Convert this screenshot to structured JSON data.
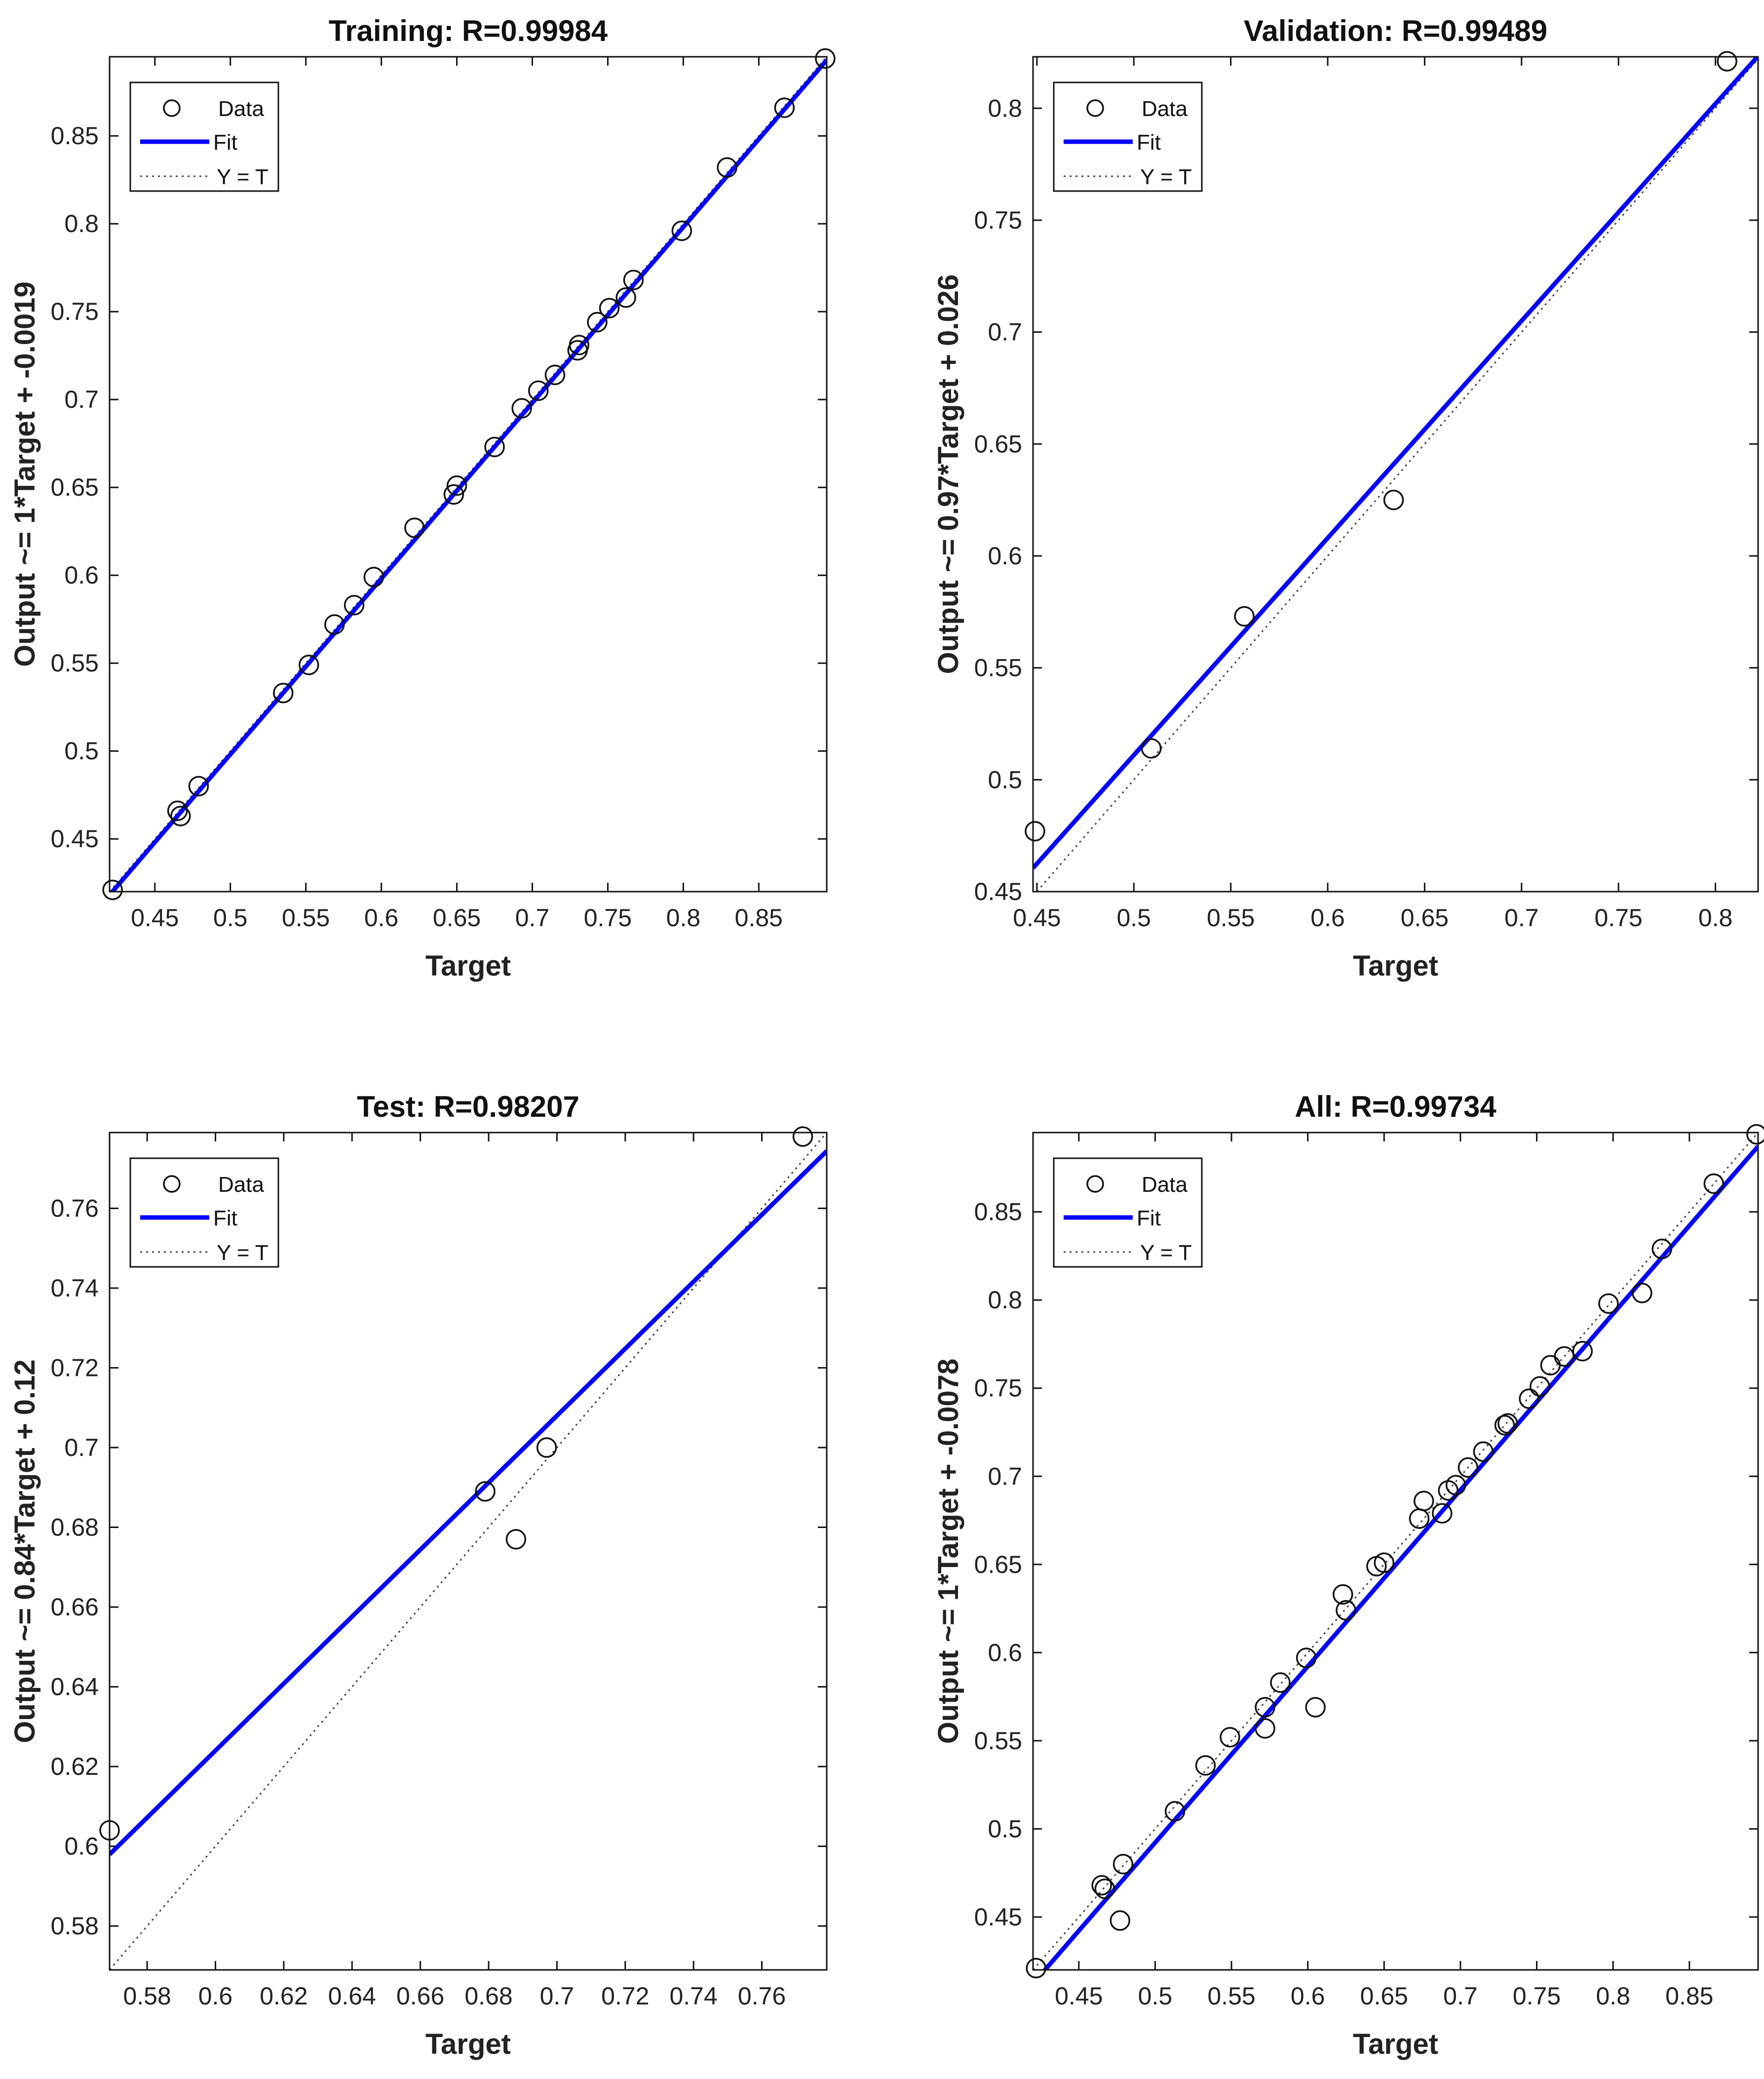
{
  "colors": {
    "fit": "#0000ff",
    "identity": "#444444",
    "marker": "#111111",
    "axes": "#111111",
    "background": "#ffffff"
  },
  "chart_data": [
    {
      "type": "scatter",
      "title": "Training: R=0.99984",
      "xlabel": "Target",
      "ylabel": "Output ~= 1*Target + -0.0019",
      "xlim": [
        0.42,
        0.895
      ],
      "ylim": [
        0.42,
        0.895
      ],
      "xticks": [
        0.45,
        0.5,
        0.55,
        0.6,
        0.65,
        0.7,
        0.75,
        0.8,
        0.85
      ],
      "xtick_labels": [
        "0.45",
        "0.5",
        "0.55",
        "0.6",
        "0.65",
        "0.7",
        "0.75",
        "0.8",
        "0.85"
      ],
      "yticks": [
        0.45,
        0.5,
        0.55,
        0.6,
        0.65,
        0.7,
        0.75,
        0.8,
        0.85
      ],
      "ytick_labels": [
        "0.45",
        "0.5",
        "0.55",
        "0.6",
        "0.65",
        "0.7",
        "0.75",
        "0.8",
        "0.85"
      ],
      "fit": {
        "slope": 1.0,
        "intercept": -0.0019
      },
      "legend": {
        "data": "Data",
        "fit": "Fit",
        "identity": "Y = T",
        "position": "top-left"
      },
      "points": [
        [
          0.422,
          0.421
        ],
        [
          0.465,
          0.466
        ],
        [
          0.467,
          0.463
        ],
        [
          0.479,
          0.48
        ],
        [
          0.535,
          0.533
        ],
        [
          0.552,
          0.549
        ],
        [
          0.569,
          0.572
        ],
        [
          0.582,
          0.583
        ],
        [
          0.595,
          0.599
        ],
        [
          0.622,
          0.627
        ],
        [
          0.648,
          0.646
        ],
        [
          0.65,
          0.651
        ],
        [
          0.675,
          0.673
        ],
        [
          0.693,
          0.695
        ],
        [
          0.704,
          0.705
        ],
        [
          0.715,
          0.714
        ],
        [
          0.73,
          0.728
        ],
        [
          0.731,
          0.731
        ],
        [
          0.743,
          0.744
        ],
        [
          0.751,
          0.752
        ],
        [
          0.762,
          0.758
        ],
        [
          0.767,
          0.768
        ],
        [
          0.799,
          0.796
        ],
        [
          0.829,
          0.832
        ],
        [
          0.867,
          0.866
        ],
        [
          0.894,
          0.894
        ]
      ]
    },
    {
      "type": "scatter",
      "title": "Validation: R=0.99489",
      "xlabel": "Target",
      "ylabel": "Output ~= 0.97*Target + 0.026",
      "xlim": [
        0.448,
        0.822
      ],
      "ylim": [
        0.45,
        0.823
      ],
      "xticks": [
        0.45,
        0.5,
        0.55,
        0.6,
        0.65,
        0.7,
        0.75,
        0.8
      ],
      "xtick_labels": [
        "0.45",
        "0.5",
        "0.55",
        "0.6",
        "0.65",
        "0.7",
        "0.75",
        "0.8"
      ],
      "yticks": [
        0.45,
        0.5,
        0.55,
        0.6,
        0.65,
        0.7,
        0.75,
        0.8
      ],
      "ytick_labels": [
        "0.45",
        "0.5",
        "0.55",
        "0.6",
        "0.65",
        "0.7",
        "0.75",
        "0.8"
      ],
      "fit": {
        "slope": 0.97,
        "intercept": 0.026
      },
      "legend": {
        "data": "Data",
        "fit": "Fit",
        "identity": "Y = T",
        "position": "top-left"
      },
      "points": [
        [
          0.449,
          0.477
        ],
        [
          0.509,
          0.514
        ],
        [
          0.557,
          0.573
        ],
        [
          0.634,
          0.625
        ],
        [
          0.806,
          0.821
        ]
      ]
    },
    {
      "type": "scatter",
      "title": "Test: R=0.98207",
      "xlabel": "Target",
      "ylabel": "Output ~= 0.84*Target + 0.12",
      "xlim": [
        0.569,
        0.779
      ],
      "ylim": [
        0.569,
        0.779
      ],
      "xticks": [
        0.58,
        0.6,
        0.62,
        0.64,
        0.66,
        0.68,
        0.7,
        0.72,
        0.74,
        0.76
      ],
      "xtick_labels": [
        "0.58",
        "0.6",
        "0.62",
        "0.64",
        "0.66",
        "0.68",
        "0.7",
        "0.72",
        "0.74",
        "0.76"
      ],
      "yticks": [
        0.58,
        0.6,
        0.62,
        0.64,
        0.66,
        0.68,
        0.7,
        0.72,
        0.74,
        0.76
      ],
      "ytick_labels": [
        "0.58",
        "0.6",
        "0.62",
        "0.64",
        "0.66",
        "0.68",
        "0.7",
        "0.72",
        "0.74",
        "0.76"
      ],
      "fit": {
        "slope": 0.84,
        "intercept": 0.12
      },
      "legend": {
        "data": "Data",
        "fit": "Fit",
        "identity": "Y = T",
        "position": "top-left"
      },
      "points": [
        [
          0.569,
          0.604
        ],
        [
          0.679,
          0.689
        ],
        [
          0.688,
          0.677
        ],
        [
          0.697,
          0.7
        ],
        [
          0.772,
          0.778
        ]
      ]
    },
    {
      "type": "scatter",
      "title": "All: R=0.99734",
      "xlabel": "Target",
      "ylabel": "Output ~= 1*Target + -0.0078",
      "xlim": [
        0.42,
        0.895
      ],
      "ylim": [
        0.42,
        0.895
      ],
      "xticks": [
        0.45,
        0.5,
        0.55,
        0.6,
        0.65,
        0.7,
        0.75,
        0.8,
        0.85
      ],
      "xtick_labels": [
        "0.45",
        "0.5",
        "0.55",
        "0.6",
        "0.65",
        "0.7",
        "0.75",
        "0.8",
        "0.85"
      ],
      "yticks": [
        0.45,
        0.5,
        0.55,
        0.6,
        0.65,
        0.7,
        0.75,
        0.8,
        0.85
      ],
      "ytick_labels": [
        "0.45",
        "0.5",
        "0.55",
        "0.6",
        "0.65",
        "0.7",
        "0.75",
        "0.8",
        "0.85"
      ],
      "fit": {
        "slope": 1.0,
        "intercept": -0.0078
      },
      "legend": {
        "data": "Data",
        "fit": "Fit",
        "identity": "Y = T",
        "position": "top-left"
      },
      "points": [
        [
          0.422,
          0.421
        ],
        [
          0.465,
          0.468
        ],
        [
          0.467,
          0.466
        ],
        [
          0.477,
          0.448
        ],
        [
          0.479,
          0.48
        ],
        [
          0.513,
          0.51
        ],
        [
          0.533,
          0.536
        ],
        [
          0.549,
          0.552
        ],
        [
          0.572,
          0.557
        ],
        [
          0.572,
          0.569
        ],
        [
          0.582,
          0.583
        ],
        [
          0.599,
          0.597
        ],
        [
          0.605,
          0.569
        ],
        [
          0.623,
          0.633
        ],
        [
          0.625,
          0.624
        ],
        [
          0.645,
          0.649
        ],
        [
          0.65,
          0.651
        ],
        [
          0.673,
          0.676
        ],
        [
          0.676,
          0.686
        ],
        [
          0.688,
          0.679
        ],
        [
          0.692,
          0.692
        ],
        [
          0.697,
          0.695
        ],
        [
          0.705,
          0.705
        ],
        [
          0.715,
          0.714
        ],
        [
          0.729,
          0.729
        ],
        [
          0.731,
          0.73
        ],
        [
          0.745,
          0.744
        ],
        [
          0.752,
          0.751
        ],
        [
          0.759,
          0.763
        ],
        [
          0.768,
          0.768
        ],
        [
          0.78,
          0.771
        ],
        [
          0.797,
          0.798
        ],
        [
          0.819,
          0.804
        ],
        [
          0.832,
          0.829
        ],
        [
          0.866,
          0.866
        ],
        [
          0.894,
          0.894
        ]
      ]
    }
  ]
}
